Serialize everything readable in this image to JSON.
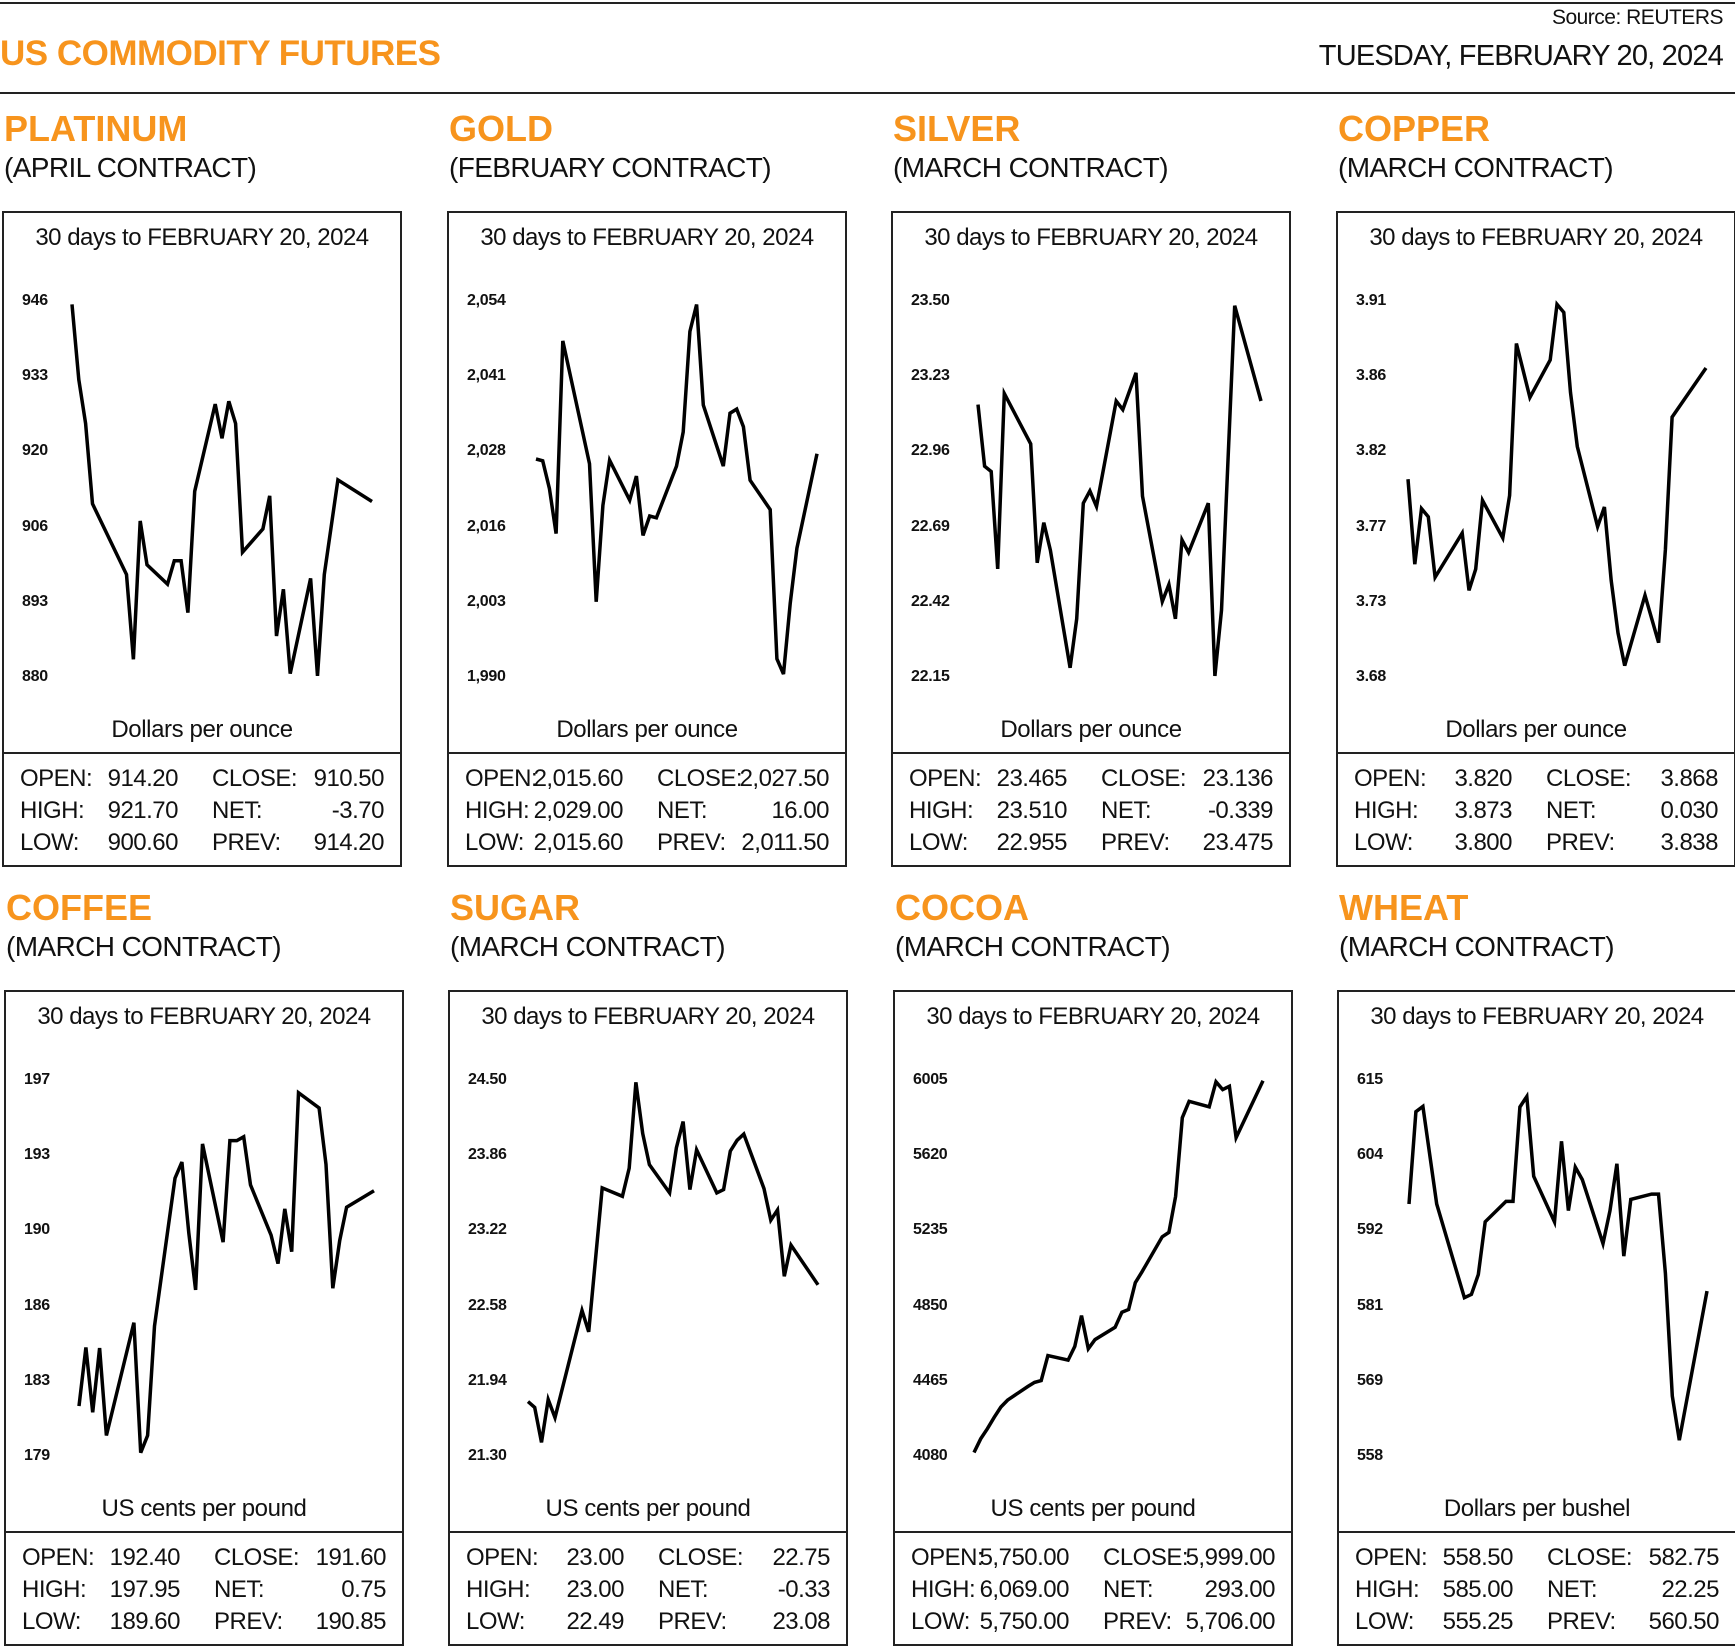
{
  "header": {
    "title": "US COMMODITY FUTURES",
    "source": "Source: REUTERS",
    "date": "TUESDAY, FEBRUARY 20, 2024",
    "accent_color": "#F7941D"
  },
  "stat_labels": {
    "open": "OPEN:",
    "high": "HIGH:",
    "low": "LOW:",
    "close": "CLOSE:",
    "net": "NET:",
    "prev": "PREV:"
  },
  "panels": [
    {
      "name": "PLATINUM",
      "contract": "(APRIL CONTRACT)",
      "stats": {
        "open": "914.20",
        "high": "921.70",
        "low": "900.60",
        "close": "910.50",
        "net": "-3.70",
        "prev": "914.20"
      }
    },
    {
      "name": "GOLD",
      "contract": "(FEBRUARY CONTRACT)",
      "stats": {
        "open": "2,015.60",
        "high": "2,029.00",
        "low": "2,015.60",
        "close": "2,027.50",
        "net": "16.00",
        "prev": "2,011.50"
      }
    },
    {
      "name": "SILVER",
      "contract": "(MARCH CONTRACT)",
      "stats": {
        "open": "23.465",
        "high": "23.510",
        "low": "22.955",
        "close": "23.136",
        "net": "-0.339",
        "prev": "23.475"
      }
    },
    {
      "name": "COPPER",
      "contract": "(MARCH CONTRACT)",
      "stats": {
        "open": "3.820",
        "high": "3.873",
        "low": "3.800",
        "close": "3.868",
        "net": "0.030",
        "prev": "3.838"
      }
    },
    {
      "name": "COFFEE",
      "contract": "(MARCH CONTRACT)",
      "stats": {
        "open": "192.40",
        "high": "197.95",
        "low": "189.60",
        "close": "191.60",
        "net": "0.75",
        "prev": "190.85"
      }
    },
    {
      "name": "SUGAR",
      "contract": "(MARCH CONTRACT)",
      "stats": {
        "open": "23.00",
        "high": "23.00",
        "low": "22.49",
        "close": "22.75",
        "net": "-0.33",
        "prev": "23.08"
      }
    },
    {
      "name": "COCOA",
      "contract": "(MARCH CONTRACT)",
      "stats": {
        "open": "5,750.00",
        "high": "6,069.00",
        "low": "5,750.00",
        "close": "5,999.00",
        "net": "293.00",
        "prev": "5,706.00"
      }
    },
    {
      "name": "WHEAT",
      "contract": "(MARCH CONTRACT)",
      "stats": {
        "open": "558.50",
        "high": "585.00",
        "low": "555.25",
        "close": "582.75",
        "net": "22.25",
        "prev": "560.50"
      }
    }
  ],
  "chart_data": [
    {
      "type": "line",
      "title": "30 days to FEBRUARY 20, 2024",
      "ylabel": "Dollars per ounce",
      "yticks": [
        "946",
        "933",
        "920",
        "906",
        "893",
        "880"
      ],
      "ylim": [
        880,
        946
      ],
      "grid": false,
      "x": [
        0,
        1,
        2,
        3,
        8,
        9,
        10,
        11,
        14,
        15,
        16,
        17,
        18,
        21,
        22,
        23,
        24,
        25,
        28,
        29,
        30,
        31,
        32,
        35,
        36,
        37,
        39,
        44
      ],
      "values": [
        945.4,
        932.2,
        924.5,
        910.4,
        898.0,
        883.1,
        907.4,
        899.7,
        896.3,
        900.4,
        900.4,
        891.3,
        912.6,
        927.9,
        921.9,
        928.4,
        924.5,
        901.9,
        906.0,
        911.8,
        887.2,
        895.4,
        880.6,
        897.3,
        880.2,
        898.0,
        914.6,
        910.8
      ]
    },
    {
      "type": "line",
      "title": "30 days to FEBRUARY 20, 2024",
      "ylabel": "Dollars per ounce",
      "yticks": [
        "2,054",
        "2,041",
        "2,028",
        "2,016",
        "2,003",
        "1,990"
      ],
      "ylim": [
        1990,
        2054
      ],
      "grid": false,
      "x": [
        0,
        1,
        2,
        3,
        4,
        8,
        9,
        10,
        11,
        14,
        15,
        16,
        17,
        18,
        21,
        22,
        23,
        24,
        25,
        28,
        29,
        30,
        31,
        32,
        35,
        36,
        37,
        38,
        39,
        42
      ],
      "values": [
        2027.1,
        2026.8,
        2022.1,
        2014.4,
        2047.2,
        2026.3,
        2002.8,
        2019.2,
        2026.9,
        2020.1,
        2024.2,
        2014.1,
        2017.4,
        2017.1,
        2025.9,
        2031.7,
        2048.8,
        2053.4,
        2036.3,
        2025.9,
        2034.9,
        2035.6,
        2032.6,
        2023.5,
        2018.5,
        1993.1,
        1990.5,
        2002.5,
        2011.9,
        2028.0
      ]
    },
    {
      "type": "line",
      "title": "30 days to FEBRUARY 20, 2024",
      "ylabel": "Dollars per ounce",
      "yticks": [
        "23.50",
        "23.23",
        "22.96",
        "22.69",
        "22.42",
        "22.15"
      ],
      "ylim": [
        22.15,
        23.5
      ],
      "grid": false,
      "x": [
        0,
        1,
        2,
        3,
        4,
        8,
        9,
        10,
        11,
        14,
        15,
        16,
        17,
        18,
        21,
        22,
        24,
        25,
        28,
        29,
        30,
        31,
        32,
        35,
        36,
        37,
        39,
        43
      ],
      "values": [
        23.128,
        22.907,
        22.888,
        22.538,
        23.168,
        22.987,
        22.56,
        22.704,
        22.605,
        22.183,
        22.359,
        22.774,
        22.818,
        22.762,
        23.141,
        23.11,
        23.242,
        22.799,
        22.421,
        22.482,
        22.359,
        22.642,
        22.597,
        22.774,
        22.154,
        22.39,
        23.483,
        23.141
      ]
    },
    {
      "type": "line",
      "title": "30 days to FEBRUARY 20, 2024",
      "ylabel": "Dollars per ounce",
      "yticks": [
        "3.91",
        "3.86",
        "3.82",
        "3.77",
        "3.73",
        "3.68"
      ],
      "ylim": [
        3.68,
        3.91
      ],
      "grid": false,
      "x": [
        0,
        1,
        2,
        3,
        4,
        8,
        9,
        10,
        11,
        14,
        15,
        16,
        18,
        21,
        22,
        23,
        24,
        25,
        28,
        29,
        30,
        31,
        32,
        35,
        37,
        38,
        39,
        44
      ],
      "values": [
        3.801,
        3.749,
        3.783,
        3.778,
        3.741,
        3.768,
        3.733,
        3.746,
        3.788,
        3.765,
        3.791,
        3.884,
        3.851,
        3.874,
        3.908,
        3.903,
        3.854,
        3.821,
        3.772,
        3.784,
        3.739,
        3.707,
        3.687,
        3.73,
        3.701,
        3.758,
        3.839,
        3.869
      ]
    },
    {
      "type": "line",
      "title": "30 days to FEBRUARY 20, 2024",
      "ylabel": "US cents per pound",
      "yticks": [
        "197",
        "193",
        "190",
        "186",
        "183",
        "179"
      ],
      "ylim": [
        179,
        197
      ],
      "grid": false,
      "x": [
        0,
        1,
        2,
        3,
        4,
        8,
        9,
        10,
        11,
        14,
        15,
        16,
        17,
        18,
        21,
        22,
        23,
        24,
        25,
        28,
        29,
        30,
        31,
        32,
        35,
        36,
        37,
        38,
        39,
        43
      ],
      "values": [
        181.39,
        184.2,
        181.09,
        184.17,
        179.98,
        185.38,
        179.16,
        179.98,
        185.22,
        192.3,
        193.07,
        189.68,
        186.95,
        193.94,
        189.24,
        194.1,
        194.1,
        194.28,
        191.98,
        189.57,
        188.21,
        190.83,
        188.78,
        196.39,
        195.66,
        192.96,
        187.03,
        189.31,
        190.91,
        191.7
      ]
    },
    {
      "type": "line",
      "title": "30 days to FEBRUARY 20, 2024",
      "ylabel": "US cents per pound",
      "yticks": [
        "24.50",
        "23.86",
        "23.22",
        "22.58",
        "21.94",
        "21.30"
      ],
      "ylim": [
        21.3,
        24.5
      ],
      "grid": false,
      "x": [
        0,
        1,
        2,
        3,
        4,
        8,
        9,
        11,
        14,
        15,
        16,
        17,
        18,
        21,
        22,
        23,
        24,
        25,
        28,
        29,
        30,
        31,
        32,
        35,
        36,
        37,
        38,
        39,
        43
      ],
      "values": [
        21.763,
        21.714,
        21.416,
        21.781,
        21.627,
        22.539,
        22.357,
        23.582,
        23.51,
        23.75,
        24.48,
        24.045,
        23.779,
        23.539,
        23.924,
        24.147,
        23.567,
        23.906,
        23.539,
        23.567,
        23.895,
        23.987,
        24.04,
        23.576,
        23.307,
        23.394,
        22.829,
        23.095,
        22.757
      ]
    },
    {
      "type": "line",
      "title": "30 days to FEBRUARY 20, 2024",
      "ylabel": "US cents per pound",
      "yticks": [
        "6005",
        "5620",
        "5235",
        "4850",
        "4465",
        "4080"
      ],
      "ylim": [
        4080,
        6005
      ],
      "grid": false,
      "x": [
        0,
        1,
        2,
        3,
        4,
        5,
        8,
        9,
        10,
        11,
        14,
        15,
        16,
        17,
        18,
        21,
        22,
        23,
        24,
        25,
        28,
        29,
        30,
        31,
        32,
        35,
        36,
        37,
        38,
        39,
        43
      ],
      "values": [
        4098,
        4168,
        4220,
        4278,
        4331,
        4366,
        4436,
        4457,
        4466,
        4594,
        4571,
        4641,
        4799,
        4629,
        4676,
        4739,
        4816,
        4830,
        4967,
        5023,
        5202,
        5225,
        5409,
        5812,
        5896,
        5868,
        5996,
        5956,
        5973,
        5710,
        6001
      ]
    },
    {
      "type": "line",
      "title": "30 days to FEBRUARY 20, 2024",
      "ylabel": "Dollars per bushel",
      "yticks": [
        "615",
        "604",
        "592",
        "581",
        "569",
        "558"
      ],
      "ylim": [
        558,
        615
      ],
      "grid": false,
      "x": [
        0,
        1,
        2,
        4,
        8,
        9,
        10,
        11,
        14,
        15,
        16,
        17,
        18,
        21,
        22,
        23,
        24,
        25,
        28,
        29,
        30,
        31,
        32,
        35,
        36,
        37,
        38,
        39,
        43
      ],
      "values": [
        596.2,
        610.2,
        611.0,
        596.2,
        582.0,
        582.5,
        585.5,
        593.5,
        596.6,
        596.6,
        610.9,
        612.5,
        600.4,
        593.5,
        605.7,
        595.2,
        601.8,
        599.9,
        590.2,
        595.2,
        602.3,
        588.3,
        596.9,
        597.7,
        597.7,
        585.7,
        567.1,
        560.4,
        583.0
      ]
    }
  ]
}
